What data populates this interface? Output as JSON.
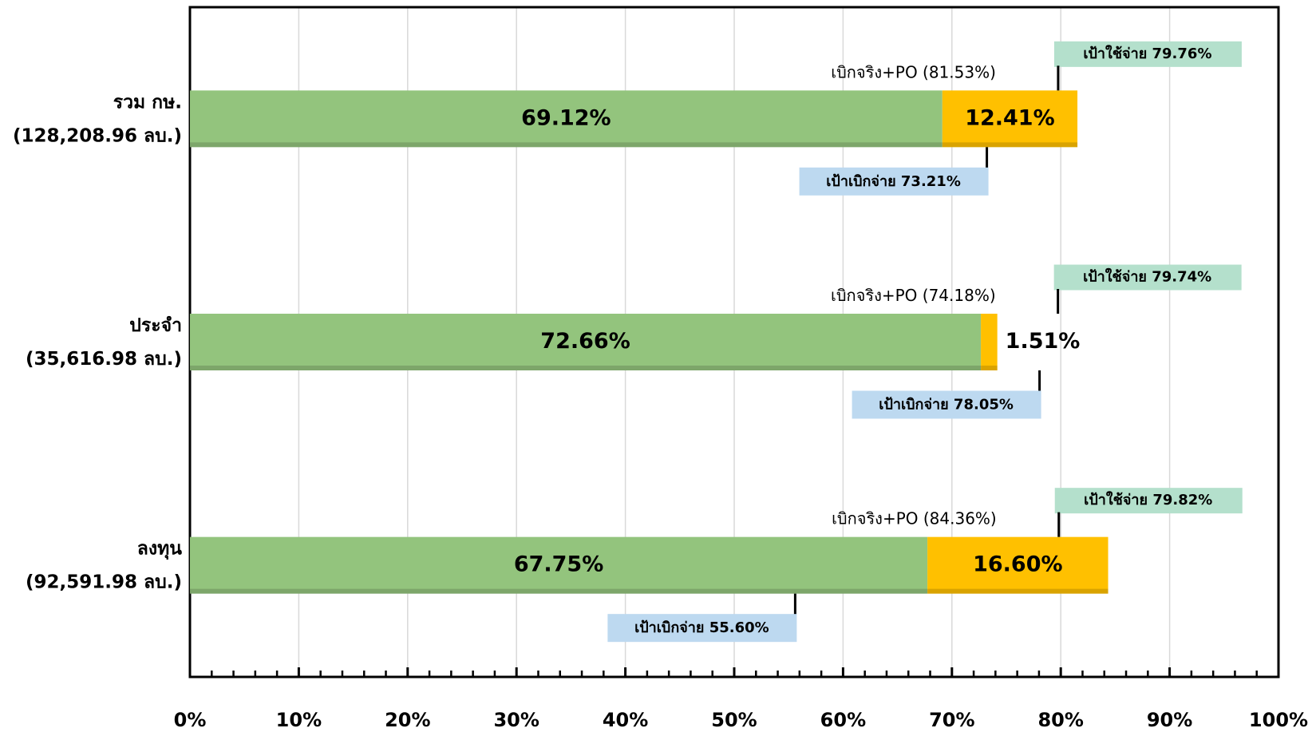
{
  "chart_data": {
    "type": "stacked-bar-horizontal",
    "categories": [
      [
        "รวม กษ.",
        "(128,208.96 ลบ.)"
      ],
      [
        "ประจำ",
        "(35,616.98 ลบ.)"
      ],
      [
        "ลงทุน",
        "(92,591.98 ลบ.)"
      ]
    ],
    "series": [
      {
        "color": "#93c47d",
        "values": [
          69.12,
          72.66,
          67.75
        ],
        "value_labels": [
          "69.12%",
          "72.66%",
          "67.75%"
        ]
      },
      {
        "color": "#ffc000",
        "values": [
          12.41,
          1.51,
          16.6
        ],
        "value_labels": [
          "12.41%",
          "1.51%",
          "16.60%"
        ]
      }
    ],
    "total_labels": [
      "เบิกจริง+PO (81.53%)",
      "เบิกจริง+PO (74.18%)",
      "เบิกจริง+PO (84.36%)"
    ],
    "spend_target": {
      "values": [
        79.76,
        79.74,
        79.82
      ],
      "labels": [
        "เป้าใช้จ่าย 79.76%",
        "เป้าใช้จ่าย 79.74%",
        "เป้าใช้จ่าย 79.82%"
      ],
      "color": "#b4e0cc"
    },
    "disburse_target": {
      "values": [
        73.21,
        78.05,
        55.6
      ],
      "labels": [
        "เป้าเบิกจ่าย 73.21%",
        "เป้าเบิกจ่าย 78.05%",
        "เป้าเบิกจ่าย 55.60%"
      ],
      "color": "#bdd9f0"
    },
    "xlim": [
      0,
      100
    ],
    "xticks": [
      {
        "value": 0,
        "label": "0%"
      },
      {
        "value": 10,
        "label": "10%"
      },
      {
        "value": 20,
        "label": "20%"
      },
      {
        "value": 30,
        "label": "30%"
      },
      {
        "value": 40,
        "label": "40%"
      },
      {
        "value": 50,
        "label": "50%"
      },
      {
        "value": 60,
        "label": "60%"
      },
      {
        "value": 70,
        "label": "70%"
      },
      {
        "value": 80,
        "label": "80%"
      },
      {
        "value": 90,
        "label": "90%"
      },
      {
        "value": 100,
        "label": "100%"
      }
    ],
    "xticks_minor": [
      2,
      4,
      6,
      8,
      12,
      14,
      16,
      18,
      22,
      24,
      26,
      28,
      32,
      34,
      36,
      38,
      42,
      44,
      46,
      48,
      52,
      54,
      56,
      58,
      62,
      64,
      66,
      68,
      72,
      74,
      76,
      78,
      82,
      84,
      86,
      88,
      92,
      94,
      96,
      98
    ],
    "grid": true
  }
}
